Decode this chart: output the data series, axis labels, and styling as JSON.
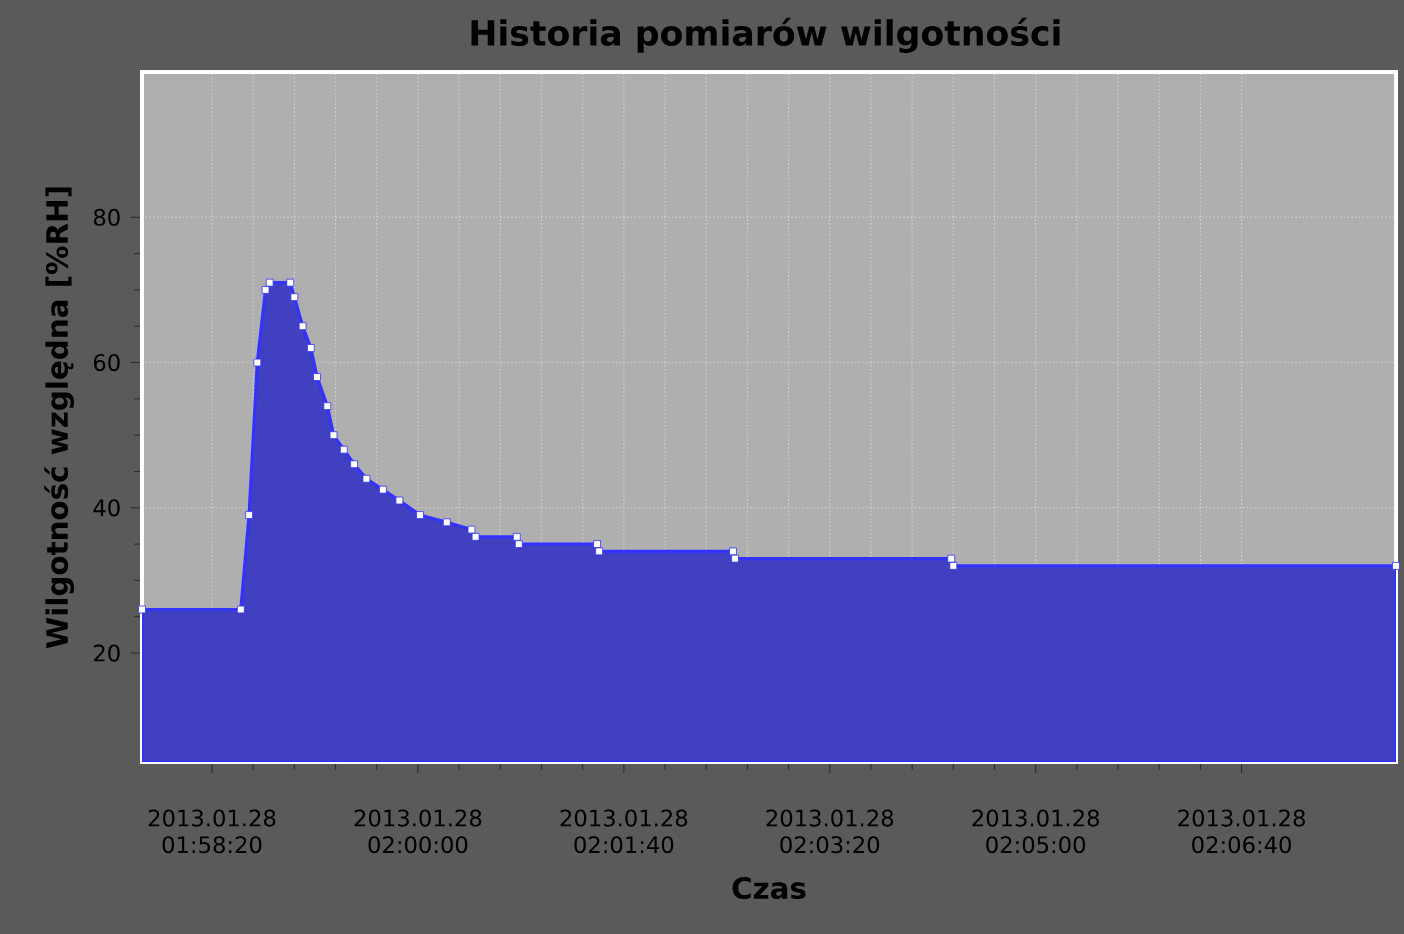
{
  "chart_data": {
    "type": "area",
    "title": "Historia pomiarów wilgotności",
    "xlabel": "Czas",
    "ylabel": "Wilgotność względna [%RH]",
    "x": [
      "2013-01-28T01:57:46",
      "2013-01-28T01:58:34",
      "2013-01-28T01:58:38",
      "2013-01-28T01:58:42",
      "2013-01-28T01:58:46",
      "2013-01-28T01:58:48",
      "2013-01-28T01:58:58",
      "2013-01-28T01:59:00",
      "2013-01-28T01:59:04",
      "2013-01-28T01:59:08",
      "2013-01-28T01:59:11",
      "2013-01-28T01:59:16",
      "2013-01-28T01:59:19",
      "2013-01-28T01:59:24",
      "2013-01-28T01:59:29",
      "2013-01-28T01:59:35",
      "2013-01-28T01:59:43",
      "2013-01-28T01:59:51",
      "2013-01-28T02:00:01",
      "2013-01-28T02:00:14",
      "2013-01-28T02:00:26",
      "2013-01-28T02:00:28",
      "2013-01-28T02:00:48",
      "2013-01-28T02:00:49",
      "2013-01-28T02:01:27",
      "2013-01-28T02:01:28",
      "2013-01-28T02:02:33",
      "2013-01-28T02:02:34",
      "2013-01-28T02:04:19",
      "2013-01-28T02:04:20",
      "2013-01-28T02:07:55"
    ],
    "values": [
      26,
      26,
      39,
      60,
      70,
      71,
      71,
      69,
      65,
      62,
      58,
      54,
      50,
      48,
      46,
      44,
      42.5,
      41,
      39,
      38,
      37,
      36,
      36,
      35,
      35,
      34,
      34,
      33,
      33,
      32,
      32
    ],
    "color": "#3333ff",
    "xlim": [
      "2013-01-28T01:57:46",
      "2013-01-28T02:07:55"
    ],
    "xticks": [
      {
        "value": "2013-01-28T01:58:20",
        "label": "2013.01.28 01:58:20"
      },
      {
        "value": "2013-01-28T02:00:00",
        "label": "2013.01.28 02:00:00"
      },
      {
        "value": "2013-01-28T02:01:40",
        "label": "2013.01.28 02:01:40"
      },
      {
        "value": "2013-01-28T02:03:20",
        "label": "2013.01.28 02:03:20"
      },
      {
        "value": "2013-01-28T02:05:00",
        "label": "2013.01.28 02:05:00"
      },
      {
        "value": "2013-01-28T02:06:40",
        "label": "2013.01.28 02:06:40"
      }
    ],
    "ylim": [
      5,
      100
    ],
    "yticks": [
      20,
      40,
      60,
      80
    ],
    "grid": true,
    "marker": "square",
    "line_style": "solid"
  }
}
